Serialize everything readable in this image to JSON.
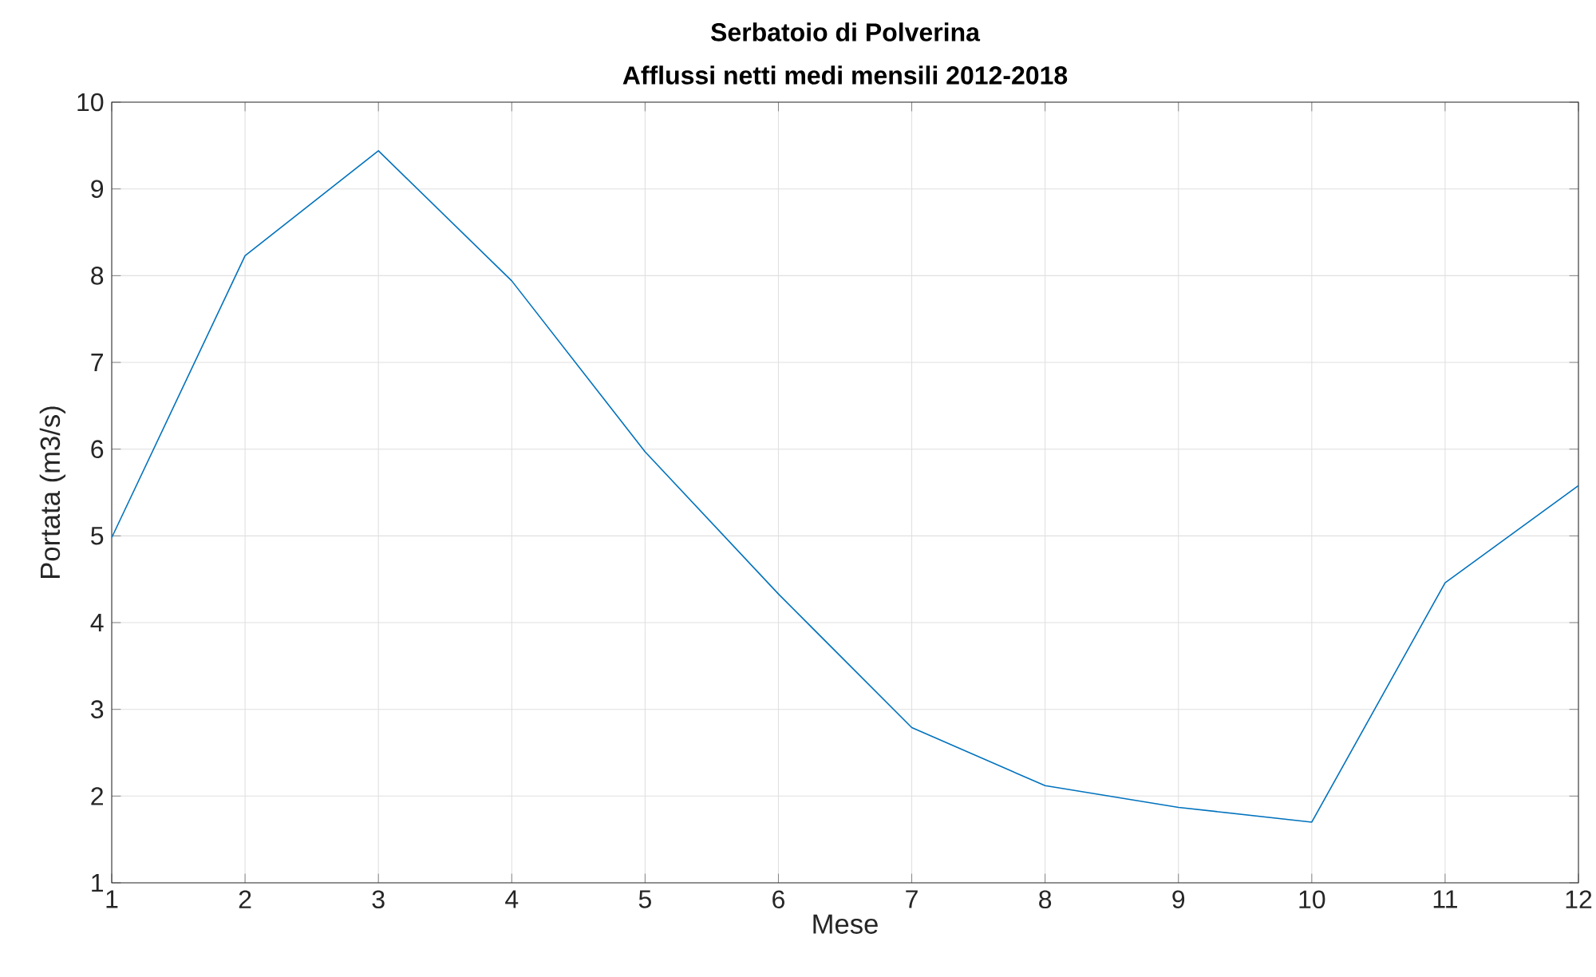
{
  "chart_data": {
    "type": "line",
    "title": "Serbatoio di Polverina",
    "subtitle": "Afflussi netti medi mensili 2012-2018",
    "xlabel": "Mese",
    "ylabel": "Portata (m3/s)",
    "x": [
      1,
      2,
      3,
      4,
      5,
      6,
      7,
      8,
      9,
      10,
      11,
      12
    ],
    "values": [
      4.98,
      8.23,
      9.44,
      7.94,
      5.97,
      4.33,
      2.79,
      2.12,
      1.87,
      1.7,
      4.46,
      5.58
    ],
    "color": "#0072bd",
    "line_style": "solid",
    "xlim": [
      1,
      12
    ],
    "ylim": [
      1,
      10
    ],
    "xticks": [
      1,
      2,
      3,
      4,
      5,
      6,
      7,
      8,
      9,
      10,
      11,
      12
    ],
    "yticks": [
      1,
      2,
      3,
      4,
      5,
      6,
      7,
      8,
      9,
      10
    ],
    "grid": true
  }
}
